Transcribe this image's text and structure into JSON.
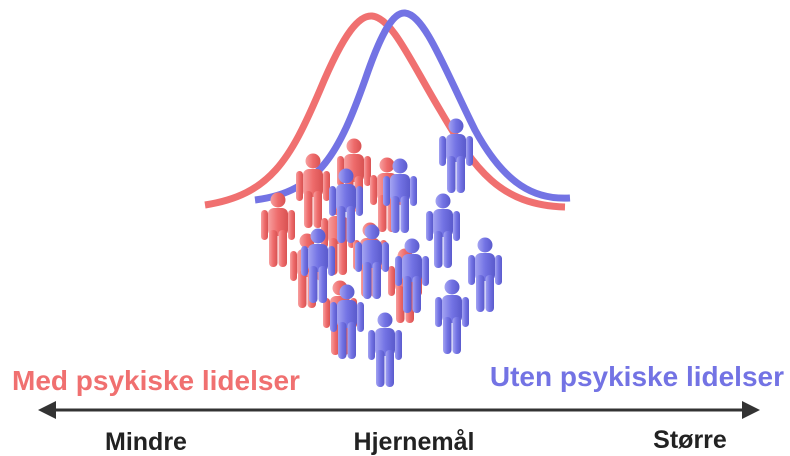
{
  "labels": {
    "group_with": "Med psykiske lidelser",
    "group_without": "Uten psykiske lidelser",
    "axis_left": "Mindre",
    "axis_title": "Hjernemål",
    "axis_right": "Større"
  }
}
